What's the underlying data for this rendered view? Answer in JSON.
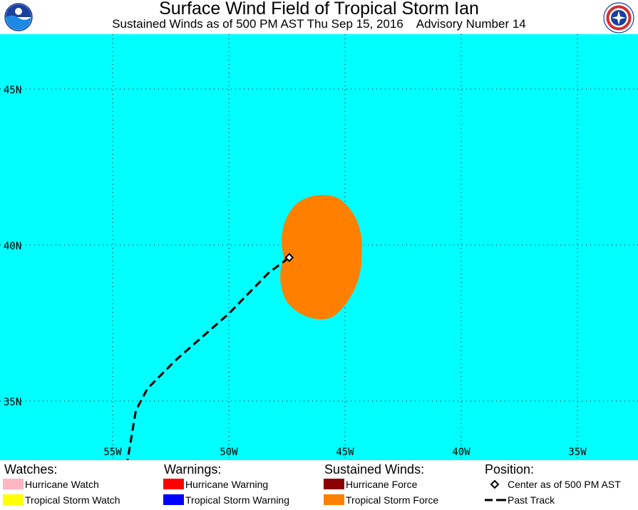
{
  "header": {
    "title": "Surface Wind Field of Tropical Storm Ian",
    "subtitle": "Sustained Winds as of 500 PM AST Thu Sep 15, 2016    Advisory Number 14"
  },
  "logos": {
    "left": "NOAA",
    "right": "NATIONAL WEATHER SERVICE"
  },
  "map": {
    "colors": {
      "ocean": "#00ffff",
      "tropical_storm_force": "#ff8000",
      "track": "#000000",
      "grid": "#000000"
    },
    "lon_labels": [
      "55W",
      "50W",
      "45W",
      "40W",
      "35W"
    ],
    "lat_labels": [
      "45N",
      "40N",
      "35N"
    ],
    "center": {
      "lon": -47.4,
      "lat": 39.6
    },
    "past_track": [
      {
        "lon": -54.4,
        "lat": 32.9
      },
      {
        "lon": -54.0,
        "lat": 34.7
      },
      {
        "lon": -53.5,
        "lat": 35.4
      },
      {
        "lon": -52.3,
        "lat": 36.3
      },
      {
        "lon": -50.0,
        "lat": 37.8
      },
      {
        "lon": -48.3,
        "lat": 39.1
      },
      {
        "lon": -47.4,
        "lat": 39.6
      }
    ],
    "tropical_storm_force_extent": {
      "north": 41.6,
      "south": 37.6,
      "west": -47.7,
      "east": -44.3
    }
  },
  "legend": {
    "watches": {
      "heading": "Watches:",
      "items": [
        {
          "label": "Hurricane Watch",
          "color": "#ffb6c1"
        },
        {
          "label": "Tropical Storm Watch",
          "color": "#ffff00"
        }
      ]
    },
    "warnings": {
      "heading": "Warnings:",
      "items": [
        {
          "label": "Hurricane Warning",
          "color": "#ff0000"
        },
        {
          "label": "Tropical Storm Warning",
          "color": "#0000ff"
        }
      ]
    },
    "winds": {
      "heading": "Sustained Winds:",
      "items": [
        {
          "label": "Hurricane Force",
          "color": "#8b0000"
        },
        {
          "label": "Tropical Storm Force",
          "color": "#ff8000"
        }
      ]
    },
    "position": {
      "heading": "Position:",
      "items": [
        {
          "label": "Center as of 500 PM AST",
          "icon": "diamond-icon"
        },
        {
          "label": "Past Track",
          "icon": "dashed-line-icon"
        }
      ]
    }
  }
}
